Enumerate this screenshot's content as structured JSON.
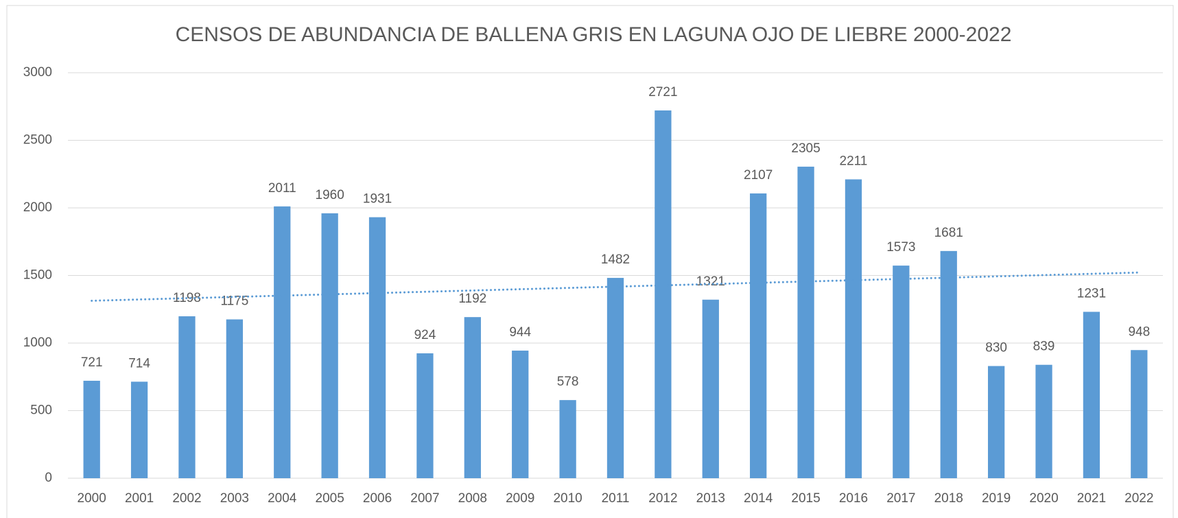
{
  "chart_data": {
    "type": "bar",
    "title": "CENSOS DE ABUNDANCIA DE BALLENA GRIS EN LAGUNA OJO DE LIEBRE 2000-2022",
    "categories": [
      "2000",
      "2001",
      "2002",
      "2003",
      "2004",
      "2005",
      "2006",
      "2007",
      "2008",
      "2009",
      "2010",
      "2011",
      "2012",
      "2013",
      "2014",
      "2015",
      "2016",
      "2017",
      "2018",
      "2019",
      "2020",
      "2021",
      "2022"
    ],
    "values": [
      721,
      714,
      1198,
      1175,
      2011,
      1960,
      1931,
      924,
      1192,
      944,
      578,
      1482,
      2721,
      1321,
      2107,
      2305,
      2211,
      1573,
      1681,
      830,
      839,
      1231,
      948
    ],
    "color": "#5b9bd5",
    "ylim": [
      0,
      3000
    ],
    "yticks": [
      0,
      500,
      1000,
      1500,
      2000,
      2500,
      3000
    ],
    "grid": true,
    "trendline": "linear"
  }
}
